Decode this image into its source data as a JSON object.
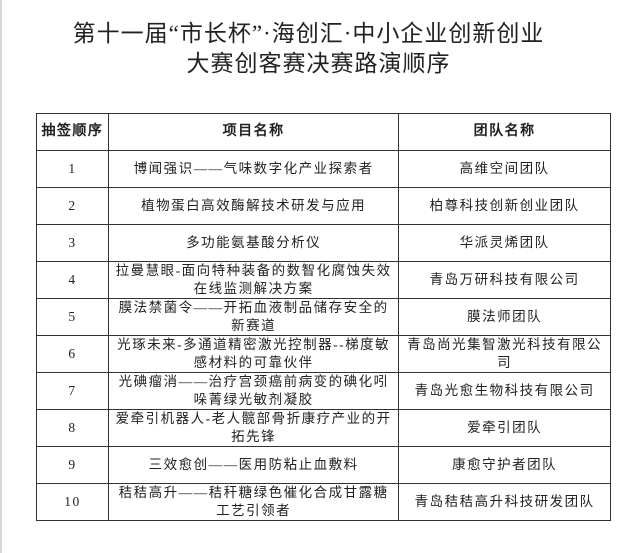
{
  "title": {
    "line1": "第十一届“市长杯”·海创汇·中小企业创新创业",
    "line2": "大赛创客赛决赛路演顺序"
  },
  "table": {
    "headers": [
      "抽签顺序",
      "项目名称",
      "团队名称"
    ],
    "rows": [
      {
        "order": "1",
        "project": "博闻强识——气味数字化产业探索者",
        "team": "高维空间团队"
      },
      {
        "order": "2",
        "project": "植物蛋白高效酶解技术研发与应用",
        "team": "柏尊科技创新创业团队"
      },
      {
        "order": "3",
        "project": "多功能氨基酸分析仪",
        "team": "华派灵烯团队"
      },
      {
        "order": "4",
        "project": "拉曼慧眼-面向特种装备的数智化腐蚀失效在线监测解决方案",
        "team": "青岛万研科技有限公司"
      },
      {
        "order": "5",
        "project": "膜法禁菌令——开拓血液制品储存安全的新赛道",
        "team": "膜法师团队"
      },
      {
        "order": "6",
        "project": "光琢未来-多通道精密激光控制器--梯度敏感材料的可靠伙伴",
        "team": "青岛尚光集智激光科技有限公司"
      },
      {
        "order": "7",
        "project": "光碘瘤消——治疗宫颈癌前病变的碘化吲哚菁绿光敏剂凝胶",
        "team": "青岛光愈生物科技有限公司"
      },
      {
        "order": "8",
        "project": "爱牵引机器人-老人髋部骨折康疗产业的开拓先锋",
        "team": "爱牵引团队"
      },
      {
        "order": "9",
        "project": "三效愈创——医用防粘止血敷料",
        "team": "康愈守护者团队"
      },
      {
        "order": "10",
        "project": "秸秸高升——秸秆糖绿色催化合成甘露糖工艺引领者",
        "team": "青岛秸秸高升科技研发团队"
      }
    ]
  }
}
